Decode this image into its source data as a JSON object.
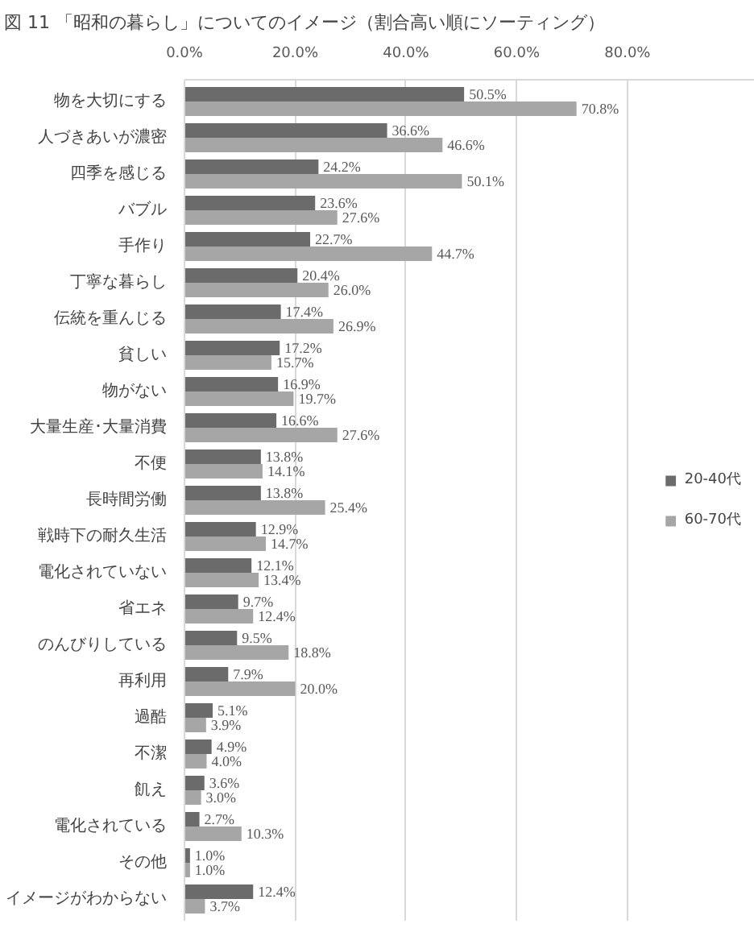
{
  "chart_data": {
    "type": "bar",
    "orientation": "horizontal",
    "title": "図 11 「昭和の暮らし」についてのイメージ（割合高い順にソーティング）",
    "categories": [
      "物を大切にする",
      "人づきあいが濃密",
      "四季を感じる",
      "バブル",
      "手作り",
      "丁寧な暮らし",
      "伝統を重んじる",
      "貧しい",
      "物がない",
      "大量生産･大量消費",
      "不便",
      "長時間労働",
      "戦時下の耐久生活",
      "電化されていない",
      "省エネ",
      "のんびりしている",
      "再利用",
      "過酷",
      "不潔",
      "飢え",
      "電化されている",
      "その他",
      "イメージがわからない"
    ],
    "series": [
      {
        "name": "20-40代",
        "color": "#6b6b6b",
        "values": [
          50.5,
          36.6,
          24.2,
          23.6,
          22.7,
          20.4,
          17.4,
          17.2,
          16.9,
          16.6,
          13.8,
          13.8,
          12.9,
          12.1,
          9.7,
          9.5,
          7.9,
          5.1,
          4.9,
          3.6,
          2.7,
          1.0,
          12.4
        ],
        "value_labels": [
          "50.5%",
          "36.6%",
          "24.2%",
          "23.6%",
          "22.7%",
          "20.4%",
          "17.4%",
          "17.2%",
          "16.9%",
          "16.6%",
          "13.8%",
          "13.8%",
          "12.9%",
          "12.1%",
          "9.7%",
          "9.5%",
          "7.9%",
          "5.1%",
          "4.9%",
          "3.6%",
          "2.7%",
          "1.0%",
          "12.4%"
        ]
      },
      {
        "name": "60-70代",
        "color": "#a6a6a6",
        "values": [
          70.8,
          46.6,
          50.1,
          27.6,
          44.7,
          26.0,
          26.9,
          15.7,
          19.7,
          27.6,
          14.1,
          25.4,
          14.7,
          13.4,
          12.4,
          18.8,
          20.0,
          3.9,
          4.0,
          3.0,
          10.3,
          1.0,
          3.7
        ],
        "value_labels": [
          "70.8%",
          "46.6%",
          "50.1%",
          "27.6%",
          "44.7%",
          "26.0%",
          "26.9%",
          "15.7%",
          "19.7%",
          "27.6%",
          "14.1%",
          "25.4%",
          "14.7%",
          "13.4%",
          "12.4%",
          "18.8%",
          "20.0%",
          "3.9%",
          "4.0%",
          "3.0%",
          "10.3%",
          "1.0%",
          "3.7%"
        ]
      }
    ],
    "xlim": [
      0,
      103
    ],
    "xticks": [
      {
        "value": 0,
        "label": "0.0%"
      },
      {
        "value": 20,
        "label": "20.0%"
      },
      {
        "value": 40,
        "label": "40.0%"
      },
      {
        "value": 60,
        "label": "60.0%"
      },
      {
        "value": 80,
        "label": "80.0%"
      }
    ],
    "grid": "x",
    "legend": "right"
  }
}
